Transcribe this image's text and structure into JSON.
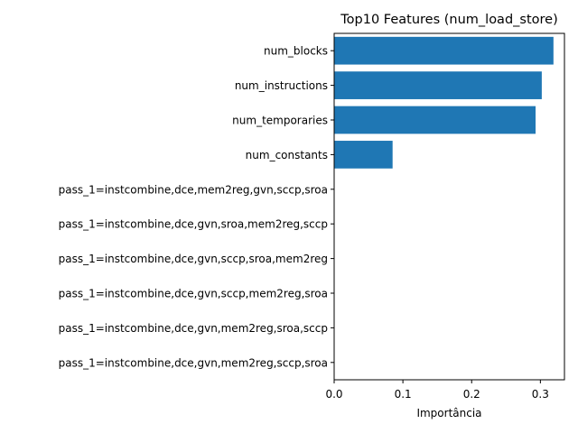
{
  "chart_data": {
    "type": "bar",
    "orientation": "horizontal",
    "title": "Top10 Features (num_load_store)",
    "xlabel": "Importância",
    "ylabel": "",
    "xlim": [
      0,
      0.335
    ],
    "xticks": [
      0.0,
      0.1,
      0.2,
      0.3
    ],
    "xtick_labels": [
      "0.0",
      "0.1",
      "0.2",
      "0.3"
    ],
    "grid": false,
    "bar_color": "#1f77b4",
    "categories": [
      "num_blocks",
      "num_instructions",
      "num_temporaries",
      "num_constants",
      "pass_1=instcombine,dce,mem2reg,gvn,sccp,sroa",
      "pass_1=instcombine,dce,gvn,sroa,mem2reg,sccp",
      "pass_1=instcombine,dce,gvn,sccp,sroa,mem2reg",
      "pass_1=instcombine,dce,gvn,sccp,mem2reg,sroa",
      "pass_1=instcombine,dce,gvn,mem2reg,sroa,sccp",
      "pass_1=instcombine,dce,gvn,mem2reg,sccp,sroa"
    ],
    "values": [
      0.319,
      0.302,
      0.293,
      0.085,
      0.0,
      0.0,
      0.0,
      0.0,
      0.0,
      0.0
    ]
  }
}
